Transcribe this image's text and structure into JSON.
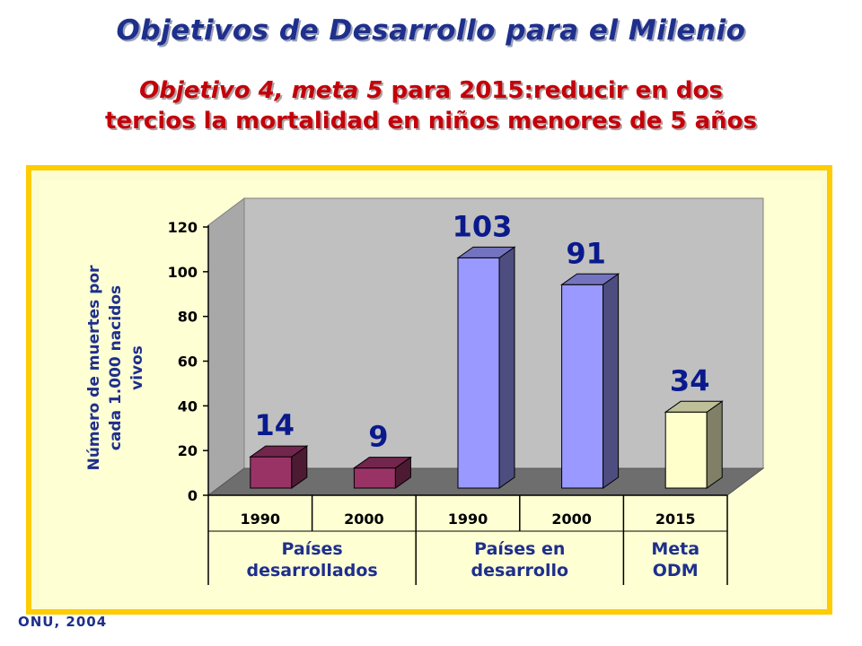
{
  "header": {
    "title": "Objetivos de Desarrollo para el Milenio",
    "subtitle_em": "Objetivo 4, meta 5",
    "subtitle_rest": " para 2015:reducir en dos",
    "subtitle_line2": "tercios la mortalidad en niños menores de 5 años"
  },
  "source": "ONU, 2004",
  "colors": {
    "title": "#1e2f8c",
    "subtitle": "#c4000a",
    "frame": "#ffcc00",
    "developed_bar": "#993366",
    "developing_bar": "#9999ff",
    "goal_bar": "#ffffcc"
  },
  "chart_data": {
    "type": "bar",
    "ylabel": "Número de muertes por cada 1.000 nacidos vivos",
    "ylabel_lines": [
      "Número de muertes por",
      "cada 1.000 nacidos",
      "vivos"
    ],
    "ylim": [
      0,
      120
    ],
    "yticks": [
      0,
      20,
      40,
      60,
      80,
      100,
      120
    ],
    "categories": [
      "1990",
      "2000",
      "1990",
      "2000",
      "2015"
    ],
    "values": [
      14,
      9,
      103,
      91,
      34
    ],
    "data_labels": [
      "14",
      "9",
      "103",
      "91",
      "34"
    ],
    "bar_colors": [
      "#993366",
      "#993366",
      "#9999ff",
      "#9999ff",
      "#ffffcc"
    ],
    "groups": [
      {
        "lines": [
          "Países",
          "desarrollados"
        ],
        "span": [
          0,
          1
        ]
      },
      {
        "lines": [
          "Países en",
          "desarrollo"
        ],
        "span": [
          2,
          3
        ]
      },
      {
        "lines": [
          "Meta",
          "ODM"
        ],
        "span": [
          4,
          4
        ]
      }
    ],
    "grid": false,
    "style": "3d"
  }
}
